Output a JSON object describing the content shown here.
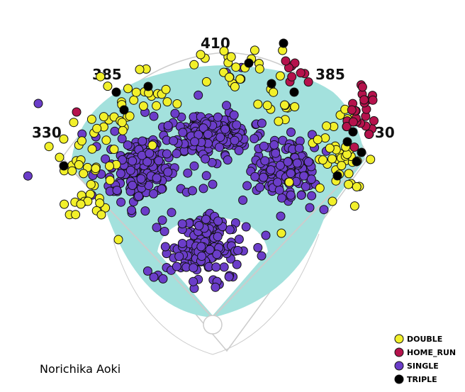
{
  "chart_data": {
    "type": "scatter",
    "title": "",
    "player": "Norichika Aoki",
    "fence_distances": [
      {
        "label": "330",
        "pos": "left-line"
      },
      {
        "label": "385",
        "pos": "left-center"
      },
      {
        "label": "410",
        "pos": "center"
      },
      {
        "label": "385",
        "pos": "right-center"
      },
      {
        "label": "330",
        "pos": "right-line"
      }
    ],
    "legend": {
      "placement": "bottom-right",
      "entries": [
        {
          "name": "DOUBLE",
          "color": "#f2f02a"
        },
        {
          "name": "HOME_RUN",
          "color": "#b5124c"
        },
        {
          "name": "SINGLE",
          "color": "#6b3dc9"
        },
        {
          "name": "TRIPLE",
          "color": "#000000"
        }
      ]
    },
    "colors": {
      "field": "#a3e1dd",
      "infield_dirt": "#ffffff",
      "lines": "#cccccc",
      "marker_outline": "#111111"
    },
    "clusters": [
      {
        "series": "SINGLE",
        "n": 190,
        "cx": 300,
        "cy": 190,
        "sx": 28,
        "sy": 15,
        "seed": 11
      },
      {
        "series": "SINGLE",
        "n": 150,
        "cx": 200,
        "cy": 238,
        "sx": 26,
        "sy": 24,
        "seed": 12
      },
      {
        "series": "SINGLE",
        "n": 135,
        "cx": 404,
        "cy": 240,
        "sx": 24,
        "sy": 21,
        "seed": 13
      },
      {
        "series": "SINGLE",
        "n": 150,
        "cx": 290,
        "cy": 350,
        "sx": 28,
        "sy": 26,
        "seed": 14
      },
      {
        "series": "SINGLE",
        "n": 28,
        "cx": 260,
        "cy": 220,
        "sx": 70,
        "sy": 55,
        "seed": 15
      },
      {
        "series": "DOUBLE",
        "n": 38,
        "cx": 130,
        "cy": 240,
        "sx": 24,
        "sy": 36,
        "seed": 21
      },
      {
        "series": "DOUBLE",
        "n": 38,
        "cx": 478,
        "cy": 220,
        "sx": 20,
        "sy": 28,
        "seed": 22
      },
      {
        "series": "DOUBLE",
        "n": 22,
        "cx": 355,
        "cy": 95,
        "sx": 30,
        "sy": 14,
        "seed": 23
      },
      {
        "series": "DOUBLE",
        "n": 18,
        "cx": 190,
        "cy": 130,
        "sx": 30,
        "sy": 14,
        "seed": 24
      },
      {
        "series": "DOUBLE",
        "n": 14,
        "cx": 420,
        "cy": 150,
        "sx": 35,
        "sy": 10,
        "seed": 25
      },
      {
        "series": "DOUBLE",
        "n": 12,
        "cx": 160,
        "cy": 175,
        "sx": 28,
        "sy": 10,
        "seed": 26
      },
      {
        "series": "HOME_RUN",
        "n": 26,
        "cx": 505,
        "cy": 160,
        "sx": 14,
        "sy": 22,
        "seed": 31
      },
      {
        "series": "HOME_RUN",
        "n": 8,
        "cx": 420,
        "cy": 100,
        "sx": 14,
        "sy": 8,
        "seed": 32
      }
    ],
    "points": [
      {
        "series": "SINGLE",
        "x": 54,
        "y": 146
      },
      {
        "series": "SINGLE",
        "x": 369,
        "y": 361
      },
      {
        "series": "SINGLE",
        "x": 396,
        "y": 305
      },
      {
        "series": "SINGLE",
        "x": 217,
        "y": 391
      },
      {
        "series": "SINGLE",
        "x": 437,
        "y": 293
      },
      {
        "series": "SINGLE",
        "x": 300,
        "y": 260
      },
      {
        "series": "SINGLE",
        "x": 375,
        "y": 332
      },
      {
        "series": "HOME_RUN",
        "x": 108,
        "y": 158
      },
      {
        "series": "HOME_RUN",
        "x": 403,
        "y": 86
      },
      {
        "series": "TRIPLE",
        "x": 400,
        "y": 61
      },
      {
        "series": "TRIPLE",
        "x": 351,
        "y": 89
      },
      {
        "series": "TRIPLE",
        "x": 383,
        "y": 118
      },
      {
        "series": "TRIPLE",
        "x": 415,
        "y": 130
      },
      {
        "series": "TRIPLE",
        "x": 209,
        "y": 122
      },
      {
        "series": "TRIPLE",
        "x": 164,
        "y": 130
      },
      {
        "series": "TRIPLE",
        "x": 175,
        "y": 155
      },
      {
        "series": "TRIPLE",
        "x": 90,
        "y": 234
      },
      {
        "series": "TRIPLE",
        "x": 490,
        "y": 200
      },
      {
        "series": "TRIPLE",
        "x": 510,
        "y": 215
      },
      {
        "series": "TRIPLE",
        "x": 503,
        "y": 228
      },
      {
        "series": "TRIPLE",
        "x": 476,
        "y": 248
      },
      {
        "series": "TRIPLE",
        "x": 498,
        "y": 186
      },
      {
        "series": "DOUBLE",
        "x": 316,
        "y": 72
      },
      {
        "series": "DOUBLE",
        "x": 283,
        "y": 77
      },
      {
        "series": "DOUBLE",
        "x": 197,
        "y": 98
      },
      {
        "series": "DOUBLE",
        "x": 167,
        "y": 338
      },
      {
        "series": "DOUBLE",
        "x": 143,
        "y": 303
      },
      {
        "series": "DOUBLE",
        "x": 114,
        "y": 288
      },
      {
        "series": "DOUBLE",
        "x": 84,
        "y": 222
      },
      {
        "series": "DOUBLE",
        "x": 469,
        "y": 284
      },
      {
        "series": "DOUBLE",
        "x": 408,
        "y": 257
      },
      {
        "series": "DOUBLE",
        "x": 397,
        "y": 329
      },
      {
        "series": "DOUBLE",
        "x": 215,
        "y": 205
      }
    ]
  }
}
